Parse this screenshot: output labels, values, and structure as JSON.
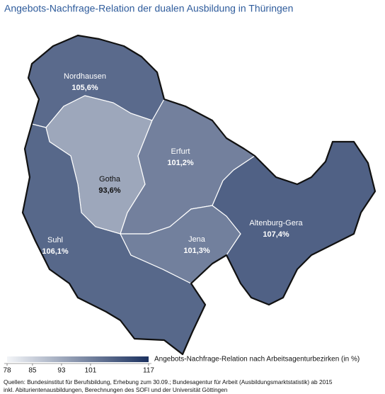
{
  "title": "Angebots-Nachfrage-Relation der dualen Ausbildung in Thüringen",
  "regions": [
    {
      "name": "Nordhausen",
      "value": 105.6,
      "value_label": "105,6%"
    },
    {
      "name": "Gotha",
      "value": 93.6,
      "value_label": "93,6%"
    },
    {
      "name": "Erfurt",
      "value": 101.2,
      "value_label": "101,2%"
    },
    {
      "name": "Suhl",
      "value": 106.1,
      "value_label": "106,1%"
    },
    {
      "name": "Jena",
      "value": 101.3,
      "value_label": "101,3%"
    },
    {
      "name": "Altenburg-Gera",
      "value": 107.4,
      "value_label": "107,4%"
    }
  ],
  "legend": {
    "label": "Angebots-Nachfrage-Relation nach Arbeitsagenturbezirken (in %)",
    "range": [
      78,
      117
    ],
    "ticks": [
      78,
      85,
      93,
      101,
      117
    ],
    "colors": [
      "#f3f5f8",
      "#1b315f"
    ]
  },
  "source": [
    "Quellen: Bundesinstitut für Berufsbildung, Erhebung zum 30.09.; Bundesagentur für Arbeit (Ausbildungsmarktstatistik) ab 2015",
    "inkl. Abiturientenausbildungen, Berechnungen des SOFI und der Universität Göttingen"
  ]
}
